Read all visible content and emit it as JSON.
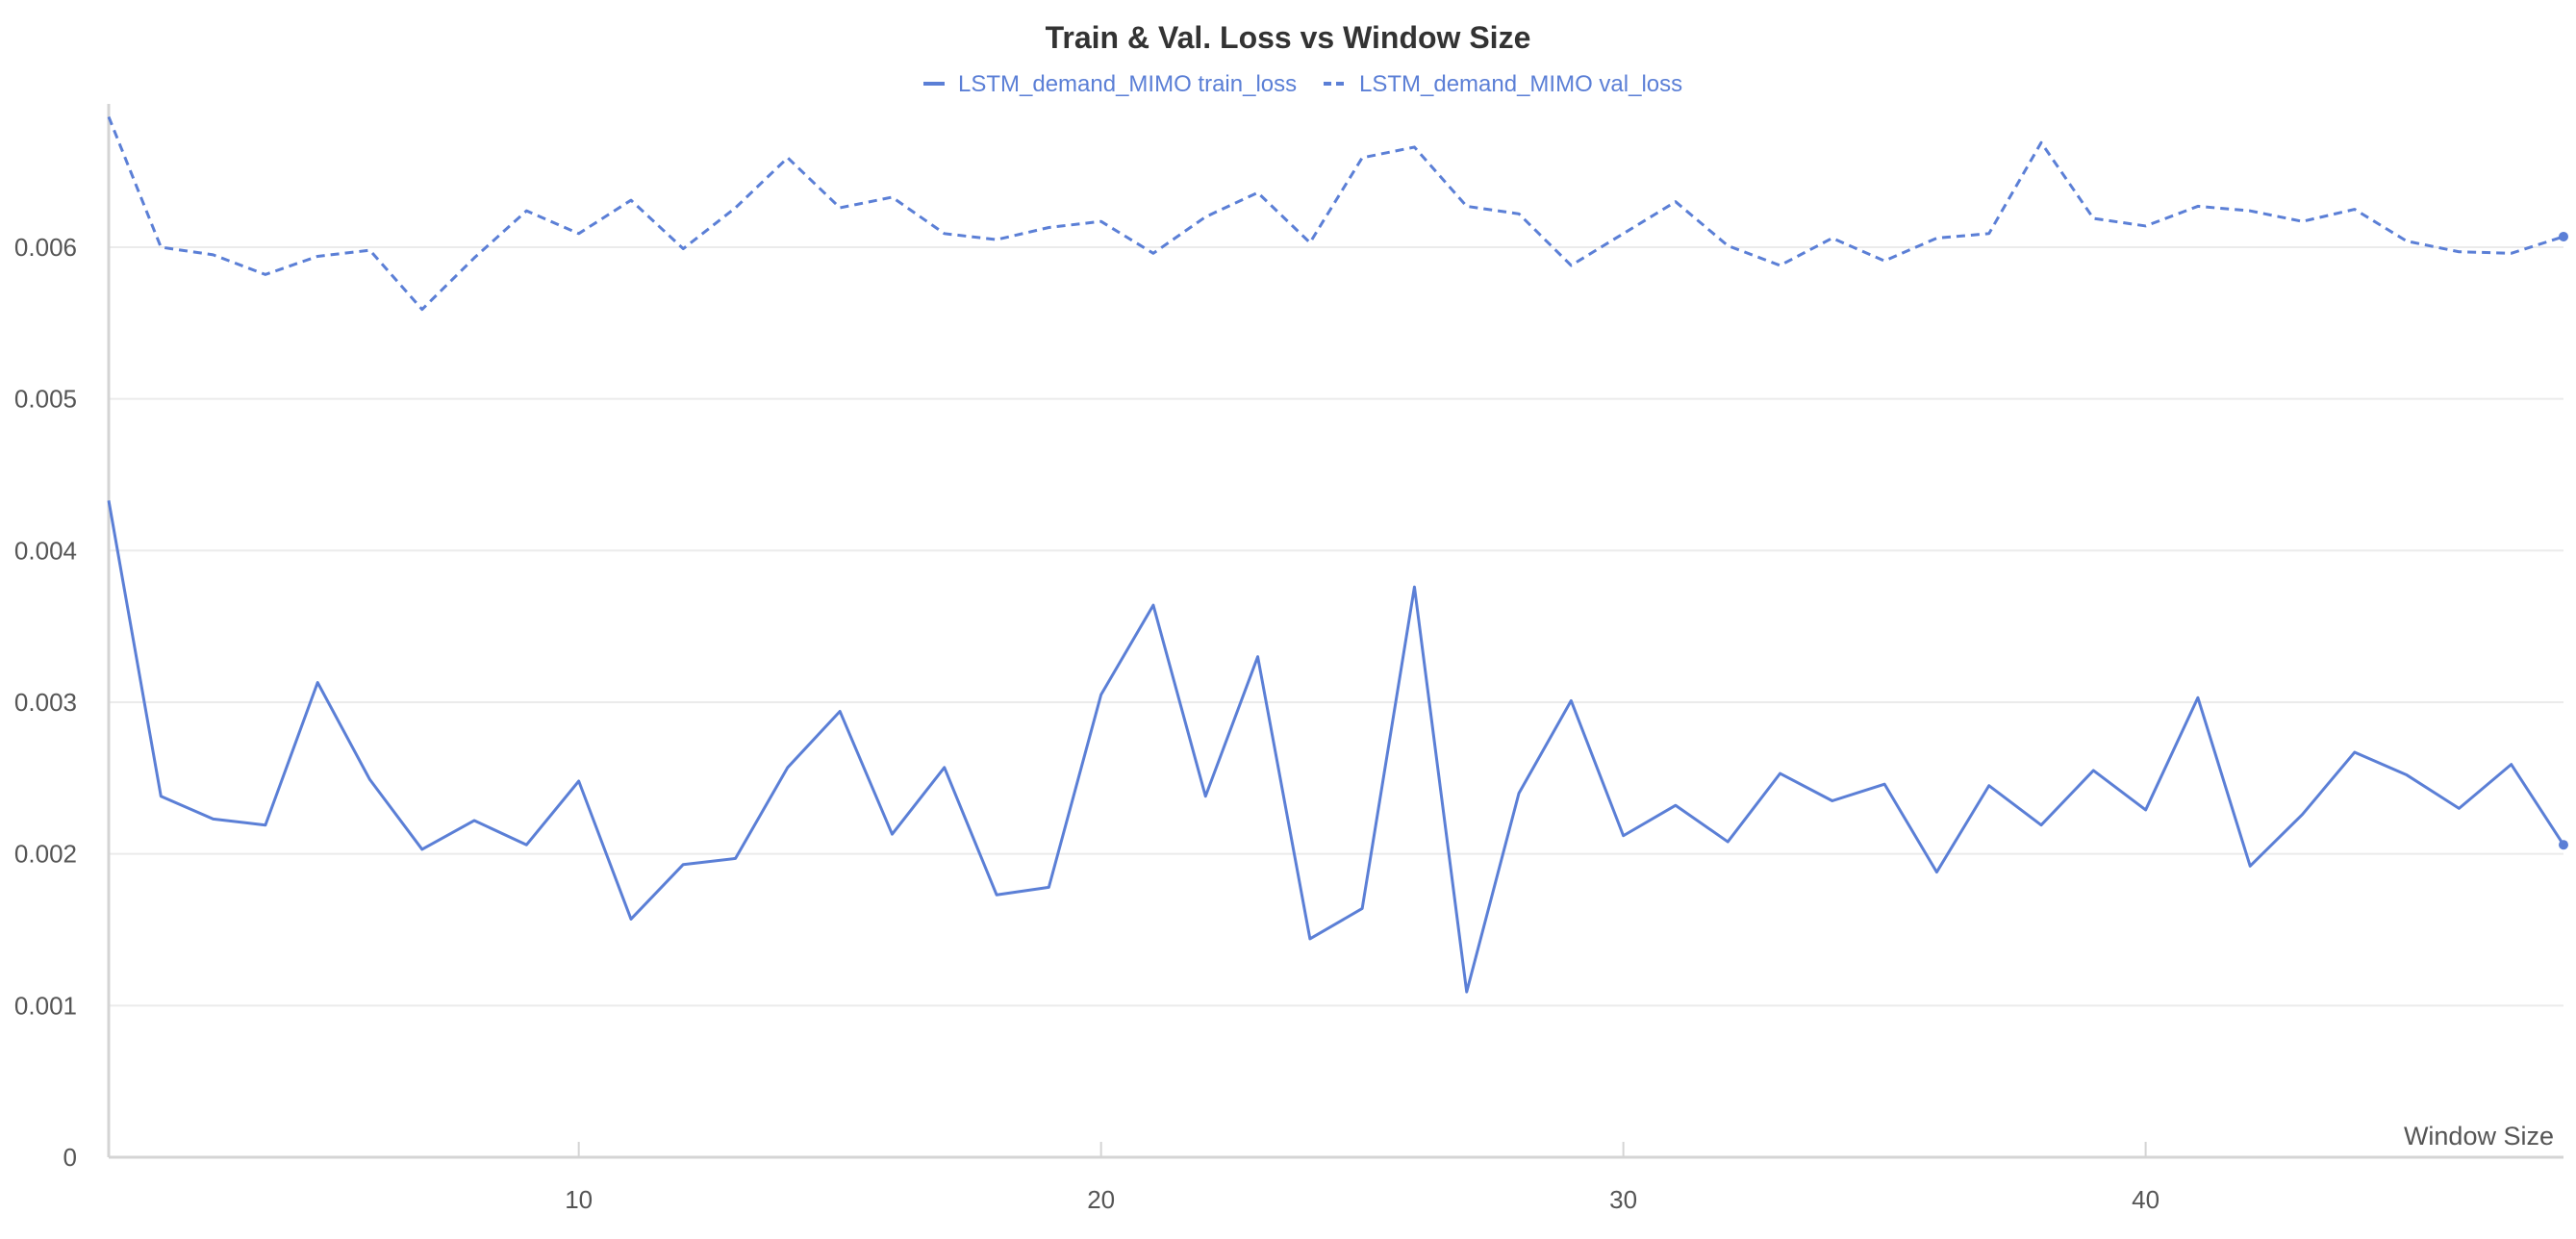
{
  "chart_data": {
    "type": "line",
    "title": "Train & Val. Loss vs Window Size",
    "xlabel": "Window Size",
    "ylabel": "",
    "xlim": [
      1,
      48
    ],
    "ylim": [
      0,
      0.0069
    ],
    "xticks": [
      10,
      20,
      30,
      40
    ],
    "xtick_labels": [
      "10",
      "20",
      "30",
      "40"
    ],
    "yticks": [
      0,
      0.001,
      0.002,
      0.003,
      0.004,
      0.005,
      0.006
    ],
    "ytick_labels": [
      "0",
      "0.001",
      "0.002",
      "0.003",
      "0.004",
      "0.005",
      "0.006"
    ],
    "grid": true,
    "legend_position": "top-center",
    "x": [
      1,
      2,
      3,
      4,
      5,
      6,
      7,
      8,
      9,
      10,
      11,
      12,
      13,
      14,
      15,
      16,
      17,
      18,
      19,
      20,
      21,
      22,
      23,
      24,
      25,
      26,
      27,
      28,
      29,
      30,
      31,
      32,
      33,
      34,
      35,
      36,
      37,
      38,
      39,
      40,
      41,
      42,
      43,
      44,
      45,
      46,
      47,
      48
    ],
    "series": [
      {
        "name": "LSTM_demand_MIMO train_loss",
        "style": "solid",
        "color": "#5b7fd6",
        "values": [
          0.00433,
          0.00238,
          0.00223,
          0.00219,
          0.00313,
          0.00249,
          0.00203,
          0.00222,
          0.00206,
          0.00248,
          0.00157,
          0.00193,
          0.00197,
          0.00257,
          0.00294,
          0.00213,
          0.00257,
          0.00173,
          0.00178,
          0.00305,
          0.00364,
          0.00238,
          0.0033,
          0.00144,
          0.00164,
          0.00376,
          0.00109,
          0.0024,
          0.00301,
          0.00212,
          0.00232,
          0.00208,
          0.00253,
          0.00235,
          0.00246,
          0.00188,
          0.00245,
          0.00219,
          0.00255,
          0.00229,
          0.00303,
          0.00192,
          0.00226,
          0.00267,
          0.00252,
          0.0023,
          0.00259,
          0.00206
        ]
      },
      {
        "name": "LSTM_demand_MIMO val_loss",
        "style": "dashed",
        "color": "#5b7fd6",
        "values": [
          0.00686,
          0.006,
          0.00595,
          0.00582,
          0.00594,
          0.00598,
          0.00559,
          0.00593,
          0.00624,
          0.00609,
          0.00631,
          0.00599,
          0.00626,
          0.00659,
          0.00626,
          0.00633,
          0.00609,
          0.00605,
          0.00613,
          0.00617,
          0.00596,
          0.0062,
          0.00636,
          0.00603,
          0.00659,
          0.00666,
          0.00627,
          0.00622,
          0.00588,
          0.00609,
          0.0063,
          0.00601,
          0.00588,
          0.00606,
          0.00591,
          0.00606,
          0.00609,
          0.00669,
          0.00619,
          0.00614,
          0.00627,
          0.00624,
          0.00617,
          0.00625,
          0.00604,
          0.00597,
          0.00596,
          0.00607
        ]
      }
    ]
  }
}
